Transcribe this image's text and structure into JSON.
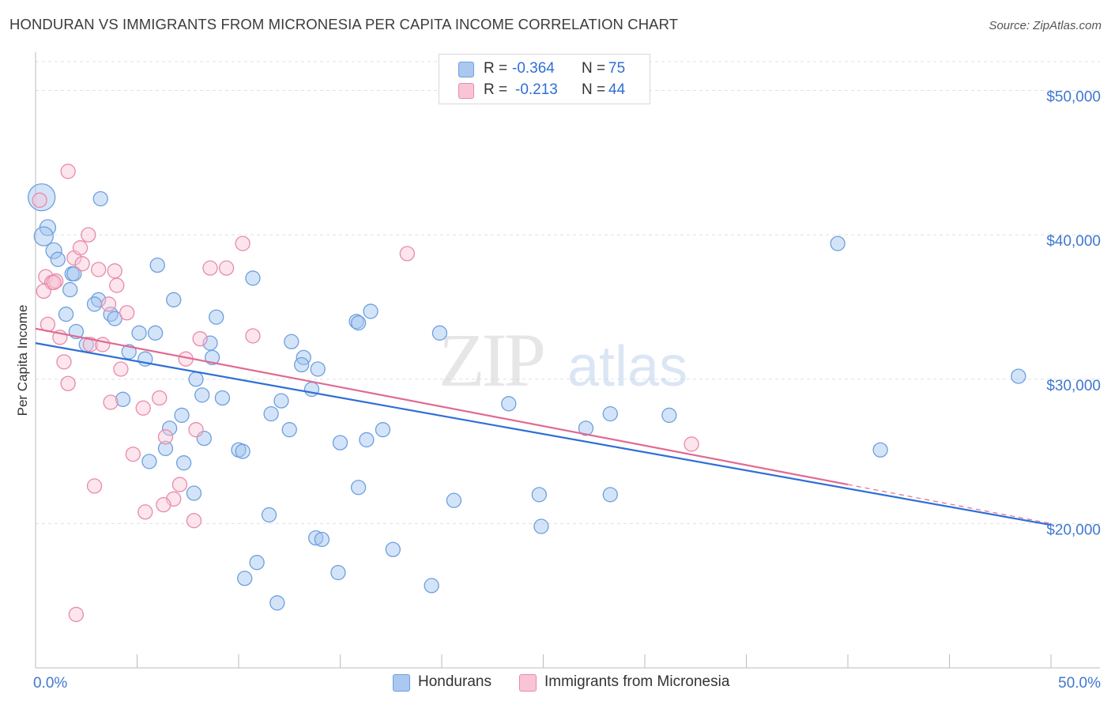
{
  "title": "HONDURAN VS IMMIGRANTS FROM MICRONESIA PER CAPITA INCOME CORRELATION CHART",
  "source": "Source: ZipAtlas.com",
  "watermark": {
    "zip": "ZIP",
    "atlas": "atlas"
  },
  "legend_top": [
    {
      "r_label": "R =",
      "r_value": "-0.364",
      "n_label": "N =",
      "n_value": "75",
      "color": "#aac8f0",
      "border": "#6e9fde"
    },
    {
      "r_label": "R =",
      "r_value": "-0.213",
      "n_label": "N =",
      "n_value": "44",
      "color": "#f9c5d6",
      "border": "#e88aaa"
    }
  ],
  "legend_bottom": [
    {
      "label": "Hondurans",
      "color": "#aac8f0",
      "border": "#6e9fde"
    },
    {
      "label": "Immigrants from Micronesia",
      "color": "#f9c5d6",
      "border": "#e88aaa"
    }
  ],
  "chart_data": {
    "type": "scatter",
    "title": "HONDURAN VS IMMIGRANTS FROM MICRONESIA PER CAPITA INCOME CORRELATION CHART",
    "xlabel": "",
    "ylabel": "Per Capita Income",
    "xlim": [
      0,
      50
    ],
    "ylim": [
      10000,
      52000
    ],
    "x_tick_labels": [
      {
        "x": 0,
        "label": "0.0%"
      },
      {
        "x": 50,
        "label": "50.0%"
      }
    ],
    "y_ticks": [
      20000,
      30000,
      40000,
      50000
    ],
    "y_tick_labels": [
      "$20,000",
      "$30,000",
      "$40,000",
      "$50,000"
    ],
    "series": [
      {
        "name": "Hondurans",
        "stroke": "#6e9fde",
        "fill": "rgba(160,195,240,0.45)",
        "line_color": "#2e6fd6",
        "trend": {
          "x0": 0,
          "y0": 32500,
          "x1": 50,
          "y1": 19900
        },
        "points": [
          [
            0.3,
            42600,
            17
          ],
          [
            0.6,
            40500,
            10
          ],
          [
            0.4,
            39900,
            12
          ],
          [
            0.9,
            38900,
            10
          ],
          [
            1.1,
            38300,
            9
          ],
          [
            1.8,
            37300,
            9
          ],
          [
            1.9,
            37300,
            9
          ],
          [
            1.7,
            36200,
            9
          ],
          [
            3.2,
            42500,
            9
          ],
          [
            6.0,
            37900,
            9
          ],
          [
            10.7,
            37000,
            9
          ],
          [
            3.1,
            35500,
            9
          ],
          [
            2.9,
            35200,
            9
          ],
          [
            6.8,
            35500,
            9
          ],
          [
            8.9,
            34300,
            9
          ],
          [
            1.5,
            34500,
            9
          ],
          [
            3.7,
            34500,
            9
          ],
          [
            3.9,
            34200,
            9
          ],
          [
            15.8,
            34000,
            9
          ],
          [
            16.5,
            34700,
            9
          ],
          [
            15.9,
            33900,
            9
          ],
          [
            2.0,
            33300,
            9
          ],
          [
            5.1,
            33200,
            9
          ],
          [
            5.9,
            33200,
            9
          ],
          [
            2.5,
            32400,
            9
          ],
          [
            4.6,
            31900,
            9
          ],
          [
            12.6,
            32600,
            9
          ],
          [
            8.6,
            32500,
            9
          ],
          [
            5.4,
            31400,
            9
          ],
          [
            8.7,
            31500,
            9
          ],
          [
            13.2,
            31500,
            9
          ],
          [
            13.1,
            31000,
            9
          ],
          [
            13.9,
            30700,
            9
          ],
          [
            19.9,
            33200,
            9
          ],
          [
            7.9,
            30000,
            9
          ],
          [
            13.6,
            29300,
            9
          ],
          [
            8.2,
            28900,
            9
          ],
          [
            9.2,
            28700,
            9
          ],
          [
            4.3,
            28600,
            9
          ],
          [
            12.1,
            28500,
            9
          ],
          [
            23.3,
            28300,
            9
          ],
          [
            11.6,
            27600,
            9
          ],
          [
            28.3,
            27600,
            9
          ],
          [
            6.6,
            26600,
            9
          ],
          [
            7.2,
            27500,
            9
          ],
          [
            12.5,
            26500,
            9
          ],
          [
            17.1,
            26500,
            9
          ],
          [
            27.1,
            26600,
            9
          ],
          [
            8.3,
            25900,
            9
          ],
          [
            10.0,
            25100,
            9
          ],
          [
            10.2,
            25000,
            9
          ],
          [
            15.0,
            25600,
            9
          ],
          [
            16.3,
            25800,
            9
          ],
          [
            6.4,
            25200,
            9
          ],
          [
            5.6,
            24300,
            9
          ],
          [
            7.3,
            24200,
            9
          ],
          [
            41.6,
            25100,
            9
          ],
          [
            39.5,
            39400,
            9
          ],
          [
            48.4,
            30200,
            9
          ],
          [
            7.8,
            22100,
            9
          ],
          [
            15.9,
            22500,
            9
          ],
          [
            20.6,
            21600,
            9
          ],
          [
            24.8,
            22000,
            9
          ],
          [
            28.3,
            22000,
            9
          ],
          [
            11.5,
            20600,
            9
          ],
          [
            24.9,
            19800,
            9
          ],
          [
            13.8,
            19000,
            9
          ],
          [
            14.1,
            18900,
            9
          ],
          [
            17.6,
            18200,
            9
          ],
          [
            10.9,
            17300,
            9
          ],
          [
            14.9,
            16600,
            9
          ],
          [
            10.3,
            16200,
            9
          ],
          [
            11.9,
            14500,
            9
          ],
          [
            19.5,
            15700,
            9
          ],
          [
            31.2,
            27500,
            9
          ]
        ]
      },
      {
        "name": "Immigrants from Micronesia",
        "stroke": "#e88aaa",
        "fill": "rgba(249,197,214,0.45)",
        "line_color": "#e06a92",
        "trend": {
          "x0": 0,
          "y0": 33500,
          "x1": 40,
          "y1": 22700
        },
        "trend_dashed": {
          "x0": 40,
          "y0": 22700,
          "x1": 50,
          "y1": 20000
        },
        "points": [
          [
            0.2,
            42400,
            9
          ],
          [
            1.6,
            44400,
            9
          ],
          [
            2.6,
            40000,
            9
          ],
          [
            10.2,
            39400,
            9
          ],
          [
            18.3,
            38700,
            9
          ],
          [
            1.9,
            38400,
            9
          ],
          [
            2.2,
            39100,
            9
          ],
          [
            2.3,
            38000,
            9
          ],
          [
            3.1,
            37600,
            9
          ],
          [
            3.9,
            37500,
            9
          ],
          [
            8.6,
            37700,
            9
          ],
          [
            9.4,
            37700,
            9
          ],
          [
            0.5,
            37100,
            9
          ],
          [
            0.8,
            36700,
            9
          ],
          [
            1.0,
            36800,
            9
          ],
          [
            0.4,
            36100,
            9
          ],
          [
            4.0,
            36500,
            9
          ],
          [
            3.6,
            35200,
            9
          ],
          [
            4.5,
            34600,
            9
          ],
          [
            0.6,
            33800,
            9
          ],
          [
            1.2,
            32900,
            9
          ],
          [
            2.7,
            32400,
            9
          ],
          [
            3.3,
            32400,
            9
          ],
          [
            8.1,
            32800,
            9
          ],
          [
            10.7,
            33000,
            9
          ],
          [
            1.4,
            31200,
            9
          ],
          [
            4.2,
            30700,
            9
          ],
          [
            7.4,
            31400,
            9
          ],
          [
            1.6,
            29700,
            9
          ],
          [
            6.1,
            28700,
            9
          ],
          [
            3.7,
            28400,
            9
          ],
          [
            5.3,
            28000,
            9
          ],
          [
            7.9,
            26500,
            9
          ],
          [
            6.4,
            26000,
            9
          ],
          [
            32.3,
            25500,
            9
          ],
          [
            4.8,
            24800,
            9
          ],
          [
            2.9,
            22600,
            9
          ],
          [
            7.1,
            22700,
            9
          ],
          [
            6.8,
            21700,
            9
          ],
          [
            6.3,
            21300,
            9
          ],
          [
            5.4,
            20800,
            9
          ],
          [
            7.8,
            20200,
            9
          ],
          [
            2.0,
            13700,
            9
          ],
          [
            0.9,
            36700,
            9
          ]
        ]
      }
    ]
  }
}
